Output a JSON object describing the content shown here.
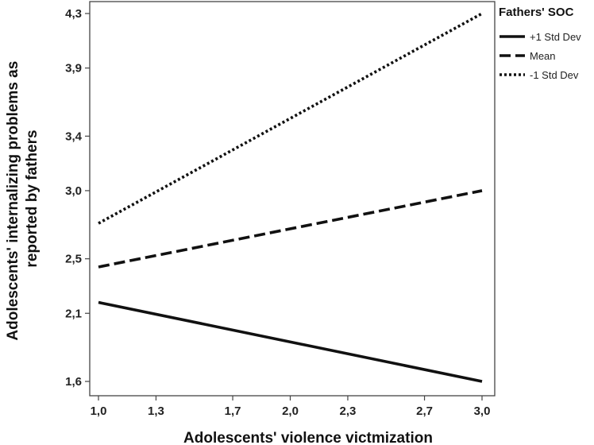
{
  "chart_data": {
    "type": "line",
    "title": "",
    "xlabel": "Adolescents' violence victmization",
    "ylabel": "Adolescents' internalizing problems as reported by fathers",
    "ylabel_lines": [
      "Adolescents' internalizing problems as",
      "reported by fathers"
    ],
    "xlim": [
      1.0,
      3.0
    ],
    "ylim": [
      1.6,
      4.3
    ],
    "x_ticks": [
      1.0,
      1.3,
      1.7,
      2.0,
      2.3,
      2.7,
      3.0
    ],
    "x_tick_labels": [
      "1,0",
      "1,3",
      "1,7",
      "2,0",
      "2,3",
      "2,7",
      "3,0"
    ],
    "y_ticks": [
      1.6,
      2.1,
      2.5,
      3.0,
      3.4,
      3.9,
      4.3
    ],
    "y_tick_labels": [
      "1,6",
      "2,1",
      "2,5",
      "3,0",
      "3,4",
      "3,9",
      "4,3"
    ],
    "grid": false,
    "legend": {
      "title": "Fathers' SOC",
      "placement": "top-right, outside plot"
    },
    "series": [
      {
        "name": "+1 Std Dev",
        "style": "solid",
        "color": "#111111",
        "x": [
          1.0,
          3.0
        ],
        "y": [
          2.18,
          1.6
        ]
      },
      {
        "name": "Mean",
        "style": "dashed",
        "color": "#111111",
        "x": [
          1.0,
          3.0
        ],
        "y": [
          2.44,
          3.0
        ]
      },
      {
        "name": "-1 Std Dev",
        "style": "dotted",
        "color": "#111111",
        "x": [
          1.0,
          3.0
        ],
        "y": [
          2.76,
          4.3
        ]
      }
    ]
  }
}
